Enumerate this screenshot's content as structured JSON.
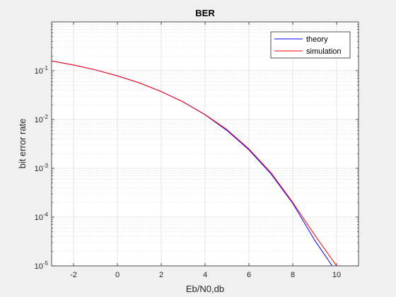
{
  "chart_data": {
    "type": "line",
    "title": "BER",
    "xlabel": "Eb/N0,db",
    "ylabel": "bit error rate",
    "xlim": [
      -3,
      11
    ],
    "ylim": [
      1e-05,
      1
    ],
    "yscale": "log",
    "grid": true,
    "minor_grid": true,
    "legend_position": "top-right",
    "x_ticks": [
      -2,
      0,
      2,
      4,
      6,
      8,
      10
    ],
    "y_ticks": [
      {
        "value": 1e-05,
        "base": "10",
        "exp": "-5"
      },
      {
        "value": 0.0001,
        "base": "10",
        "exp": "-4"
      },
      {
        "value": 0.001,
        "base": "10",
        "exp": "-3"
      },
      {
        "value": 0.01,
        "base": "10",
        "exp": "-2"
      },
      {
        "value": 0.1,
        "base": "10",
        "exp": "-1"
      }
    ],
    "series": [
      {
        "name": "theory",
        "color": "#0000ff",
        "x": [
          -3,
          -2,
          -1,
          0,
          1,
          2,
          3,
          4,
          5,
          6,
          7,
          8,
          9,
          9.8
        ],
        "y": [
          0.158,
          0.131,
          0.104,
          0.0786,
          0.0563,
          0.0375,
          0.0229,
          0.0125,
          0.00595,
          0.00239,
          0.000773,
          0.000191,
          3.36e-05,
          1e-05
        ]
      },
      {
        "name": "simulation",
        "color": "#ff0000",
        "x": [
          -3,
          -2,
          -1,
          0,
          1,
          2,
          3,
          4,
          5,
          6,
          7,
          8,
          9,
          10
        ],
        "y": [
          0.158,
          0.131,
          0.104,
          0.0785,
          0.0565,
          0.0373,
          0.023,
          0.0126,
          0.0062,
          0.0025,
          0.00082,
          0.0002,
          4.3e-05,
          1e-05
        ]
      }
    ]
  }
}
